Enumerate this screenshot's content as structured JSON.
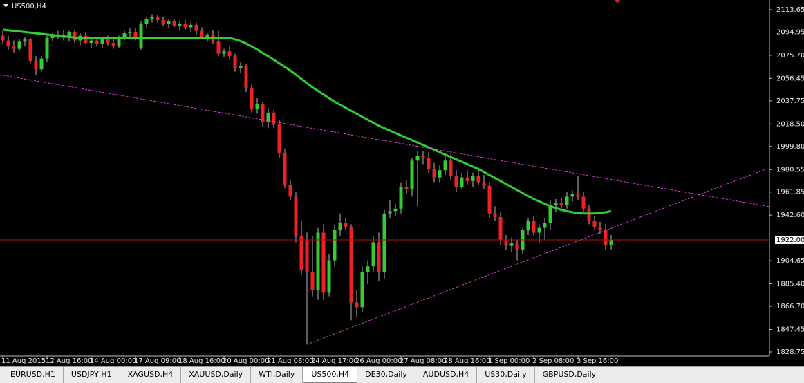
{
  "chart_data": {
    "type": "candlestick",
    "title": "US500,H4",
    "ylim": [
      1825.3,
      2121.7
    ],
    "yticks": [
      2113.65,
      2094.95,
      {
        "value": 2075.7,
        "label": "2075.70"
      },
      2056.45,
      2037.75,
      {
        "value": 2018.5,
        "label": "2018.50"
      },
      {
        "value": 1999.8,
        "label": "1999.80"
      },
      1980.55,
      1961.85,
      {
        "value": 1942.6,
        "label": "1942.60"
      },
      1904.65,
      {
        "value": 1885.4,
        "label": "1885.40"
      },
      {
        "value": 1866.7,
        "label": "1866.70"
      },
      1847.45,
      1828.75
    ],
    "categories": [
      "11 Aug 2015",
      null,
      null,
      null,
      null,
      null,
      null,
      null,
      "12 Aug 16:00",
      null,
      null,
      null,
      null,
      null,
      null,
      null,
      "14 Aug 00:00",
      null,
      null,
      null,
      null,
      null,
      null,
      null,
      "17 Aug 09:00",
      null,
      null,
      null,
      null,
      null,
      null,
      null,
      "18 Aug 16:00",
      null,
      null,
      null,
      null,
      null,
      null,
      null,
      "20 Aug 00:00",
      null,
      null,
      null,
      null,
      null,
      null,
      null,
      "21 Aug 08:00",
      null,
      null,
      null,
      null,
      null,
      null,
      null,
      "24 Aug 17:00",
      null,
      null,
      null,
      null,
      null,
      null,
      null,
      "26 Aug 00:00",
      null,
      null,
      null,
      null,
      null,
      null,
      null,
      "27 Aug 08:00",
      null,
      null,
      null,
      null,
      null,
      null,
      null,
      "28 Aug 16:00",
      null,
      null,
      null,
      null,
      null,
      null,
      null,
      "1 Sep 00:00",
      null,
      null,
      null,
      null,
      null,
      null,
      null,
      "2 Sep 08:00",
      null,
      null,
      null,
      null,
      null,
      null,
      null,
      "3 Sep 16:00",
      null,
      null,
      null,
      null,
      null,
      null
    ],
    "up_color": "#33cc33",
    "down_color": "#ee2222",
    "wick_color": "#b8b8b8",
    "ohlc": [
      [
        2092,
        2096,
        2085,
        2088
      ],
      [
        2088,
        2092,
        2080,
        2083
      ],
      [
        2083,
        2088,
        2078,
        2081
      ],
      [
        2081,
        2089,
        2079,
        2087
      ],
      [
        2087,
        2091,
        2083,
        2089
      ],
      [
        2089,
        2090,
        2069,
        2071
      ],
      [
        2071,
        2075,
        2059,
        2064
      ],
      [
        2064,
        2075,
        2062,
        2073
      ],
      [
        2073,
        2092,
        2070,
        2090
      ],
      [
        2090,
        2094,
        2087,
        2092
      ],
      [
        2092,
        2096,
        2089,
        2093
      ],
      [
        2093,
        2097,
        2088,
        2090
      ],
      [
        2090,
        2096,
        2087,
        2095
      ],
      [
        2095,
        2097,
        2086,
        2088
      ],
      [
        2088,
        2094,
        2084,
        2092
      ],
      [
        2092,
        2095,
        2085,
        2086
      ],
      [
        2086,
        2090,
        2082,
        2088
      ],
      [
        2088,
        2091,
        2083,
        2085
      ],
      [
        2085,
        2090,
        2082,
        2089
      ],
      [
        2089,
        2092,
        2084,
        2086
      ],
      [
        2086,
        2089,
        2081,
        2083
      ],
      [
        2083,
        2092,
        2082,
        2090
      ],
      [
        2090,
        2096,
        2088,
        2094
      ],
      [
        2094,
        2098,
        2091,
        2095
      ],
      [
        2095,
        2098,
        2088,
        2090
      ],
      [
        2082,
        2104,
        2080,
        2102
      ],
      [
        2102,
        2108,
        2099,
        2106
      ],
      [
        2106,
        2110,
        2103,
        2108
      ],
      [
        2108,
        2109,
        2103,
        2105
      ],
      [
        2105,
        2108,
        2100,
        2102
      ],
      [
        2102,
        2106,
        2098,
        2104
      ],
      [
        2104,
        2106,
        2099,
        2100
      ],
      [
        2100,
        2104,
        2096,
        2102
      ],
      [
        2102,
        2105,
        2097,
        2099
      ],
      [
        2099,
        2103,
        2095,
        2101
      ],
      [
        2101,
        2103,
        2093,
        2096
      ],
      [
        2096,
        2099,
        2089,
        2091
      ],
      [
        2091,
        2094,
        2087,
        2093
      ],
      [
        2093,
        2097,
        2085,
        2087
      ],
      [
        2087,
        2096,
        2075,
        2077
      ],
      [
        2077,
        2081,
        2074,
        2079
      ],
      [
        2079,
        2083,
        2072,
        2075
      ],
      [
        2075,
        2077,
        2062,
        2065
      ],
      [
        2065,
        2070,
        2061,
        2067
      ],
      [
        2067,
        2068,
        2045,
        2048
      ],
      [
        2048,
        2052,
        2028,
        2031
      ],
      [
        2031,
        2040,
        2027,
        2035
      ],
      [
        2035,
        2037,
        2016,
        2020
      ],
      [
        2020,
        2032,
        2015,
        2028
      ],
      [
        2028,
        2030,
        2015,
        2018
      ],
      [
        2018,
        2022,
        1990,
        1994
      ],
      [
        1994,
        1998,
        1965,
        1968
      ],
      [
        1968,
        1972,
        1955,
        1958
      ],
      [
        1958,
        1962,
        1920,
        1925
      ],
      [
        1925,
        1938,
        1893,
        1897
      ],
      [
        1922,
        1928,
        1835,
        1895
      ],
      [
        1895,
        1925,
        1875,
        1880
      ],
      [
        1880,
        1932,
        1872,
        1928
      ],
      [
        1928,
        1935,
        1872,
        1878
      ],
      [
        1878,
        1910,
        1875,
        1905
      ],
      [
        1905,
        1935,
        1900,
        1930
      ],
      [
        1930,
        1944,
        1925,
        1936
      ],
      [
        1936,
        1940,
        1930,
        1933
      ],
      [
        1933,
        1935,
        1855,
        1870
      ],
      [
        1870,
        1880,
        1858,
        1866
      ],
      [
        1866,
        1900,
        1862,
        1895
      ],
      [
        1895,
        1905,
        1885,
        1900
      ],
      [
        1900,
        1925,
        1895,
        1920
      ],
      [
        1920,
        1928,
        1888,
        1895
      ],
      [
        1895,
        1947,
        1890,
        1944
      ],
      [
        1944,
        1955,
        1940,
        1946
      ],
      [
        1946,
        1952,
        1942,
        1948
      ],
      [
        1948,
        1970,
        1944,
        1966
      ],
      [
        1966,
        1972,
        1960,
        1964
      ],
      [
        1964,
        1990,
        1958,
        1988
      ],
      [
        1988,
        1996,
        1950,
        1992
      ],
      [
        1992,
        1996,
        1985,
        1990
      ],
      [
        1990,
        1995,
        1978,
        1981
      ],
      [
        1981,
        1986,
        1970,
        1974
      ],
      [
        1974,
        1984,
        1970,
        1980
      ],
      [
        1980,
        1992,
        1976,
        1988
      ],
      [
        1988,
        1993,
        1972,
        1975
      ],
      [
        1975,
        1980,
        1962,
        1966
      ],
      [
        1966,
        1978,
        1964,
        1974
      ],
      [
        1974,
        1980,
        1968,
        1971
      ],
      [
        1971,
        1978,
        1966,
        1975
      ],
      [
        1975,
        1982,
        1968,
        1970
      ],
      [
        1970,
        1976,
        1964,
        1967
      ],
      [
        1967,
        1970,
        1940,
        1944
      ],
      [
        1944,
        1950,
        1938,
        1941
      ],
      [
        1941,
        1945,
        1918,
        1922
      ],
      [
        1922,
        1926,
        1914,
        1917
      ],
      [
        1917,
        1924,
        1912,
        1919
      ],
      [
        1919,
        1922,
        1905,
        1914
      ],
      [
        1914,
        1932,
        1910,
        1930
      ],
      [
        1930,
        1940,
        1926,
        1938
      ],
      [
        1938,
        1942,
        1925,
        1928
      ],
      [
        1928,
        1935,
        1920,
        1932
      ],
      [
        1932,
        1940,
        1922,
        1936
      ],
      [
        1936,
        1955,
        1930,
        1951
      ],
      [
        1951,
        1956,
        1945,
        1953
      ],
      [
        1953,
        1957,
        1948,
        1951
      ],
      [
        1951,
        1962,
        1948,
        1958
      ],
      [
        1958,
        1963,
        1954,
        1960
      ],
      [
        1960,
        1975,
        1955,
        1958
      ],
      [
        1958,
        1962,
        1945,
        1948
      ],
      [
        1948,
        1951,
        1935,
        1938
      ],
      [
        1938,
        1942,
        1930,
        1933
      ],
      [
        1933,
        1937,
        1927,
        1930
      ],
      [
        1930,
        1935,
        1914,
        1918
      ],
      [
        1918,
        1926,
        1914,
        1922
      ]
    ],
    "series": [
      {
        "color": "#33cc33",
        "values": [
          2097,
          2096.5,
          2096,
          2095.5,
          2095,
          2094.5,
          2094,
          2093.5,
          2093,
          2092.5,
          2092,
          2091.5,
          2091,
          2090.5,
          2090,
          2090,
          2090,
          2090,
          2090,
          2090,
          2090,
          2090,
          2090,
          2090,
          2090,
          2090,
          2090,
          2090,
          2090,
          2090,
          2090,
          2090,
          2090,
          2090,
          2090,
          2090,
          2090,
          2090,
          2090,
          2090,
          2090,
          2090,
          2089,
          2087.5,
          2085.5,
          2083,
          2080.5,
          2077.5,
          2075,
          2072,
          2069,
          2066,
          2063,
          2059.5,
          2056,
          2052.5,
          2049,
          2046,
          2043,
          2040,
          2037,
          2034.5,
          2032,
          2029.5,
          2027,
          2024.5,
          2022,
          2019.5,
          2017,
          2015,
          2013,
          2011,
          2009,
          2007,
          2005,
          2003,
          2001,
          1999,
          1997,
          1995,
          1993,
          1991,
          1989,
          1987,
          1985,
          1983,
          1981,
          1978.5,
          1976,
          1973.5,
          1971,
          1968.5,
          1966,
          1963.5,
          1961,
          1958.5,
          1956,
          1954,
          1952,
          1950,
          1948.5,
          1947,
          1946,
          1945,
          1944.5,
          1944,
          1944,
          1944,
          1944.5,
          1945,
          1946
        ]
      }
    ],
    "trendlines": [
      {
        "color": "#e040e0",
        "x": [
          -0.5,
          139.5
        ],
        "y": [
          2059.5,
          1949
        ]
      },
      {
        "color": "#e040e0",
        "x": [
          55,
          139.5
        ],
        "y": [
          1835,
          1983.6
        ]
      }
    ],
    "last_price": {
      "value": 1922,
      "label": "1922.00",
      "color": "#b01010"
    }
  },
  "tabs": [
    "EURUSD,H1",
    "USDJPY,H1",
    "XAGUSD,H4",
    "XAUUSD,Daily",
    "WTI,Daily",
    "US500,H4",
    "DE30,Daily",
    "AUDUSD,H4",
    "US30,Daily",
    "GBPUSD,Daily"
  ],
  "active_tab": 5
}
